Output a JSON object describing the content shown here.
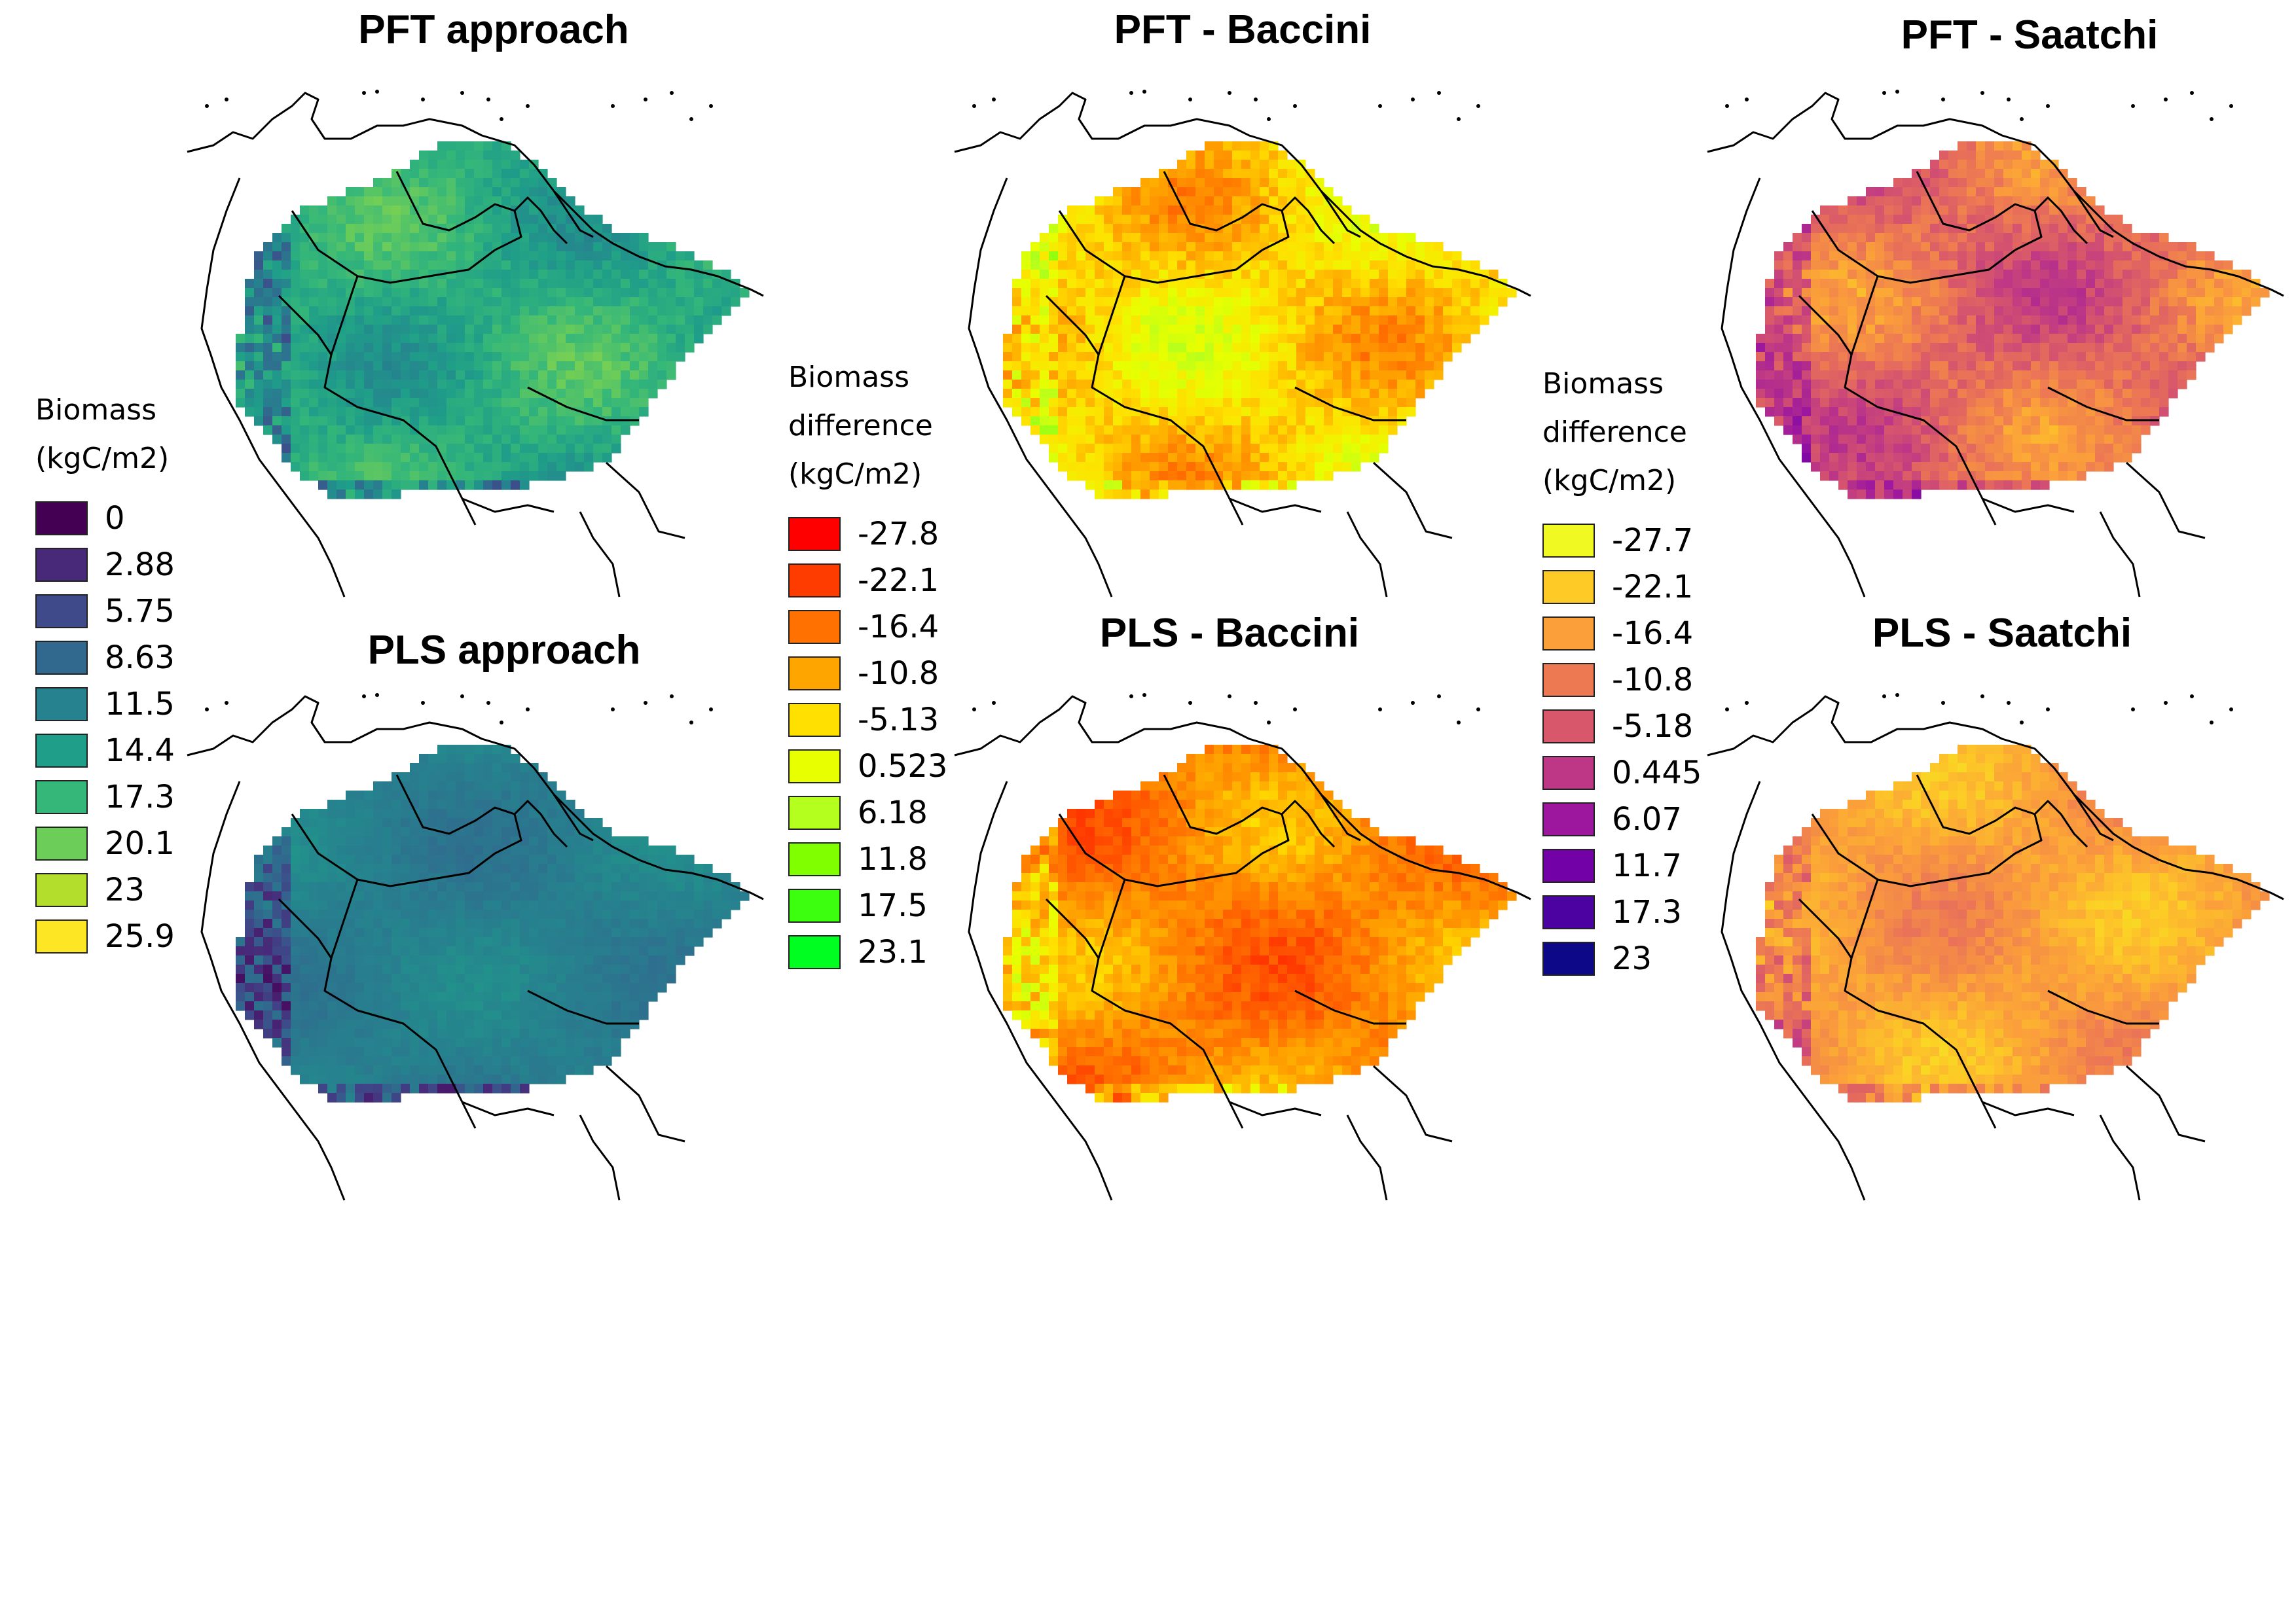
{
  "panels": [
    {
      "id": "pft",
      "title": "PFT approach",
      "scale": "biomass",
      "seed": 11,
      "bias": 0.62,
      "amp": 0.13
    },
    {
      "id": "pft_baccini",
      "title": "PFT - Baccini",
      "scale": "diff_baccini",
      "seed": 23,
      "bias": 0.43,
      "amp": 0.17
    },
    {
      "id": "pft_saatchi",
      "title": "PFT - Saatchi",
      "scale": "diff_saatchi",
      "seed": 37,
      "bias": 0.38,
      "amp": 0.17
    },
    {
      "id": "pls",
      "title": "PLS approach",
      "scale": "biomass",
      "seed": 41,
      "bias": 0.43,
      "amp": 0.06
    },
    {
      "id": "pls_baccini",
      "title": "PLS - Baccini",
      "scale": "diff_baccini",
      "seed": 53,
      "bias": 0.27,
      "amp": 0.13
    },
    {
      "id": "pls_saatchi",
      "title": "PLS - Saatchi",
      "scale": "diff_saatchi",
      "seed": 67,
      "bias": 0.22,
      "amp": 0.11
    }
  ],
  "legends": {
    "biomass": {
      "title_lines": [
        "Biomass",
        "(kgC/m2)"
      ],
      "labels": [
        "0",
        "2.88",
        "5.75",
        "8.63",
        "11.5",
        "14.4",
        "17.3",
        "20.1",
        "23",
        "25.9"
      ],
      "colors": [
        "#440154",
        "#482878",
        "#3E4A89",
        "#31688E",
        "#26828E",
        "#1F9E89",
        "#35B779",
        "#6DCD59",
        "#B4DE2C",
        "#FDE725"
      ]
    },
    "diff_baccini": {
      "title_lines": [
        "Biomass",
        "difference",
        "(kgC/m2)"
      ],
      "labels": [
        "-27.8",
        "-22.1",
        "-16.4",
        "-10.8",
        "-5.13",
        "0.523",
        "6.18",
        "11.8",
        "17.5",
        "23.1"
      ],
      "colors": [
        "#FF0000",
        "#FF3C00",
        "#FF7100",
        "#FFA500",
        "#FFE000",
        "#E8FF00",
        "#B4FF1E",
        "#7FFF00",
        "#3CFF10",
        "#00FF20"
      ]
    },
    "diff_saatchi": {
      "title_lines": [
        "Biomass",
        "difference",
        "(kgC/m2)"
      ],
      "labels": [
        "-27.7",
        "-22.1",
        "-16.4",
        "-10.8",
        "-5.18",
        "0.445",
        "6.07",
        "11.7",
        "17.3",
        "23"
      ],
      "colors": [
        "#F0F921",
        "#FDCA26",
        "#FB9F3A",
        "#ED7953",
        "#D8576B",
        "#BD3786",
        "#9C179E",
        "#7201A8",
        "#4C02A1",
        "#0D0887"
      ]
    }
  }
}
